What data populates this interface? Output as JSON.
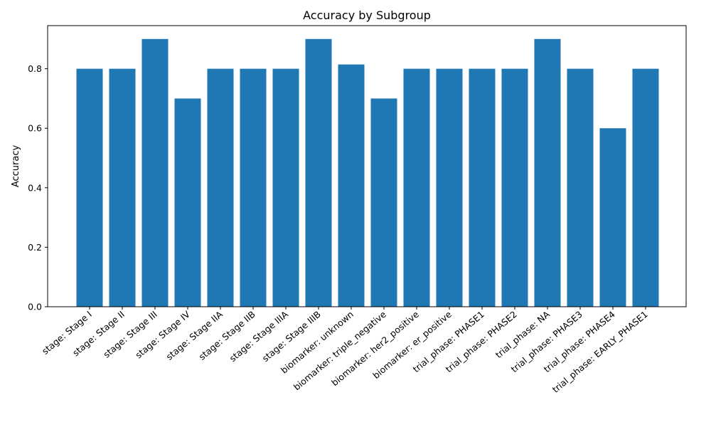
{
  "chart_data": {
    "type": "bar",
    "title": "Accuracy by Subgroup",
    "xlabel": "",
    "ylabel": "Accuracy",
    "categories": [
      "stage: Stage I",
      "stage: Stage II",
      "stage: Stage III",
      "stage: Stage IV",
      "stage: Stage IIA",
      "stage: Stage IIB",
      "stage: Stage IIIA",
      "stage: Stage IIIB",
      "biomarker: unknown",
      "biomarker: triple_negative",
      "biomarker: her2_positive",
      "biomarker: er_positive",
      "trial_phase: PHASE1",
      "trial_phase: PHASE2",
      "trial_phase: NA",
      "trial_phase: PHASE3",
      "trial_phase: PHASE4",
      "trial_phase: EARLY_PHASE1"
    ],
    "values": [
      0.8,
      0.8,
      0.9,
      0.7,
      0.8,
      0.8,
      0.8,
      0.9,
      0.8143,
      0.7,
      0.8,
      0.8,
      0.8,
      0.8,
      0.9,
      0.8,
      0.6,
      0.8
    ],
    "ylim": [
      0,
      0.945
    ],
    "yticks": [
      "0.0",
      "0.2",
      "0.4",
      "0.6",
      "0.8"
    ],
    "bar_color": "#1f77b4",
    "grid": false,
    "legend": "none"
  }
}
